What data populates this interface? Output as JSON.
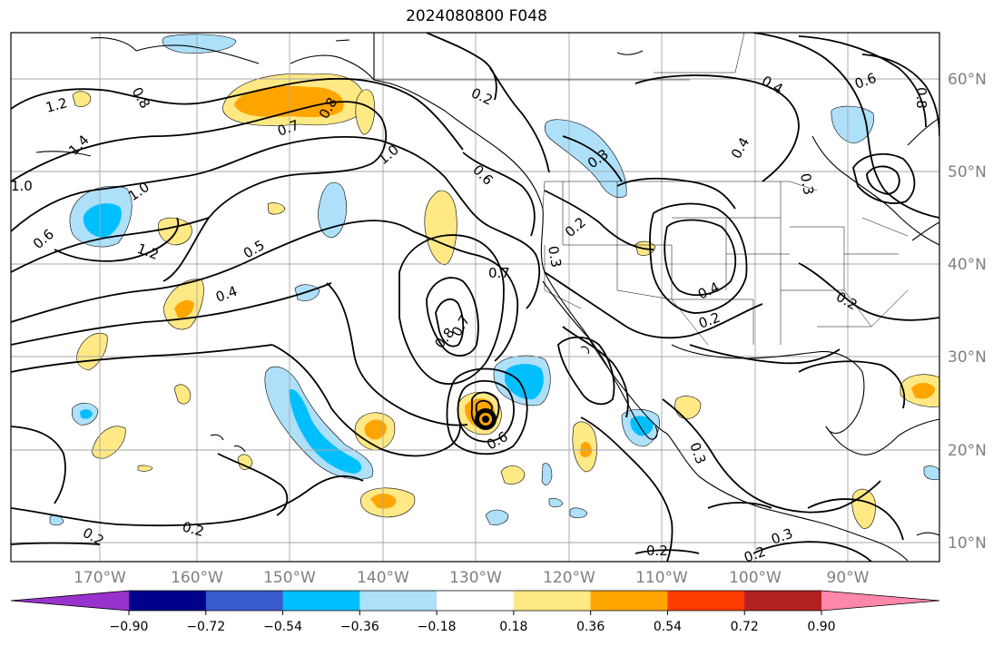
{
  "title": "2024080800 F048",
  "chart_data": {
    "type": "contour-map",
    "title": "2024080800 F048",
    "lon_ticks": [
      "170°W",
      "160°W",
      "150°W",
      "140°W",
      "130°W",
      "120°W",
      "110°W",
      "100°W",
      "90°W"
    ],
    "lat_ticks": [
      "60°N",
      "50°N",
      "40°N",
      "30°N",
      "20°N",
      "10°N"
    ],
    "lon_range": [
      -180,
      -80
    ],
    "lat_range": [
      8,
      65
    ],
    "grid": true,
    "contour_labels": [
      "1.2",
      "1.4",
      "1.0",
      "0.6",
      "1.0",
      "1.2",
      "0.8",
      "0.7",
      "0.8",
      "1.0",
      "0.2",
      "0.6",
      "0.5",
      "0.4",
      "0.7",
      "0.8",
      "0.7",
      "0.6",
      "0.3",
      "0.2",
      "0.3",
      "0.4",
      "0.2",
      "0.4",
      "0.6",
      "0.4",
      "0.3",
      "0.8",
      "0.2",
      "0.2",
      "0.2",
      "0.3",
      "0.3",
      "0.2",
      "0.2"
    ],
    "colorbar": {
      "ticks": [
        "−0.90",
        "−0.72",
        "−0.54",
        "−0.36",
        "−0.18",
        "0.18",
        "0.36",
        "0.54",
        "0.72",
        "0.90"
      ],
      "boundaries": [
        -0.9,
        -0.72,
        -0.54,
        -0.36,
        -0.18,
        0.18,
        0.36,
        0.54,
        0.72,
        0.9
      ],
      "colors": [
        "#9932cc",
        "#00008b",
        "#3a5bcc",
        "#00bfff",
        "#aee0fa",
        "#ffffff",
        "#ffe985",
        "#ffa500",
        "#ff3c00",
        "#b22222",
        "#ff88aa"
      ],
      "extend": "both"
    }
  }
}
